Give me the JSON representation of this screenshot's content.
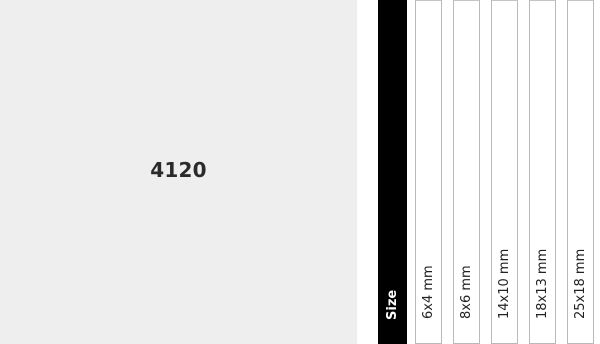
{
  "product": {
    "code": "4120"
  },
  "size_selector": {
    "header_label": "Size",
    "options": [
      {
        "label": "6x4 mm"
      },
      {
        "label": "8x6 mm"
      },
      {
        "label": "14x10 mm"
      },
      {
        "label": "18x13 mm"
      },
      {
        "label": "25x18 mm"
      }
    ]
  },
  "colors": {
    "panel_background": "#eeeeee",
    "header_background": "#000000",
    "option_border": "#b9b9b9"
  }
}
